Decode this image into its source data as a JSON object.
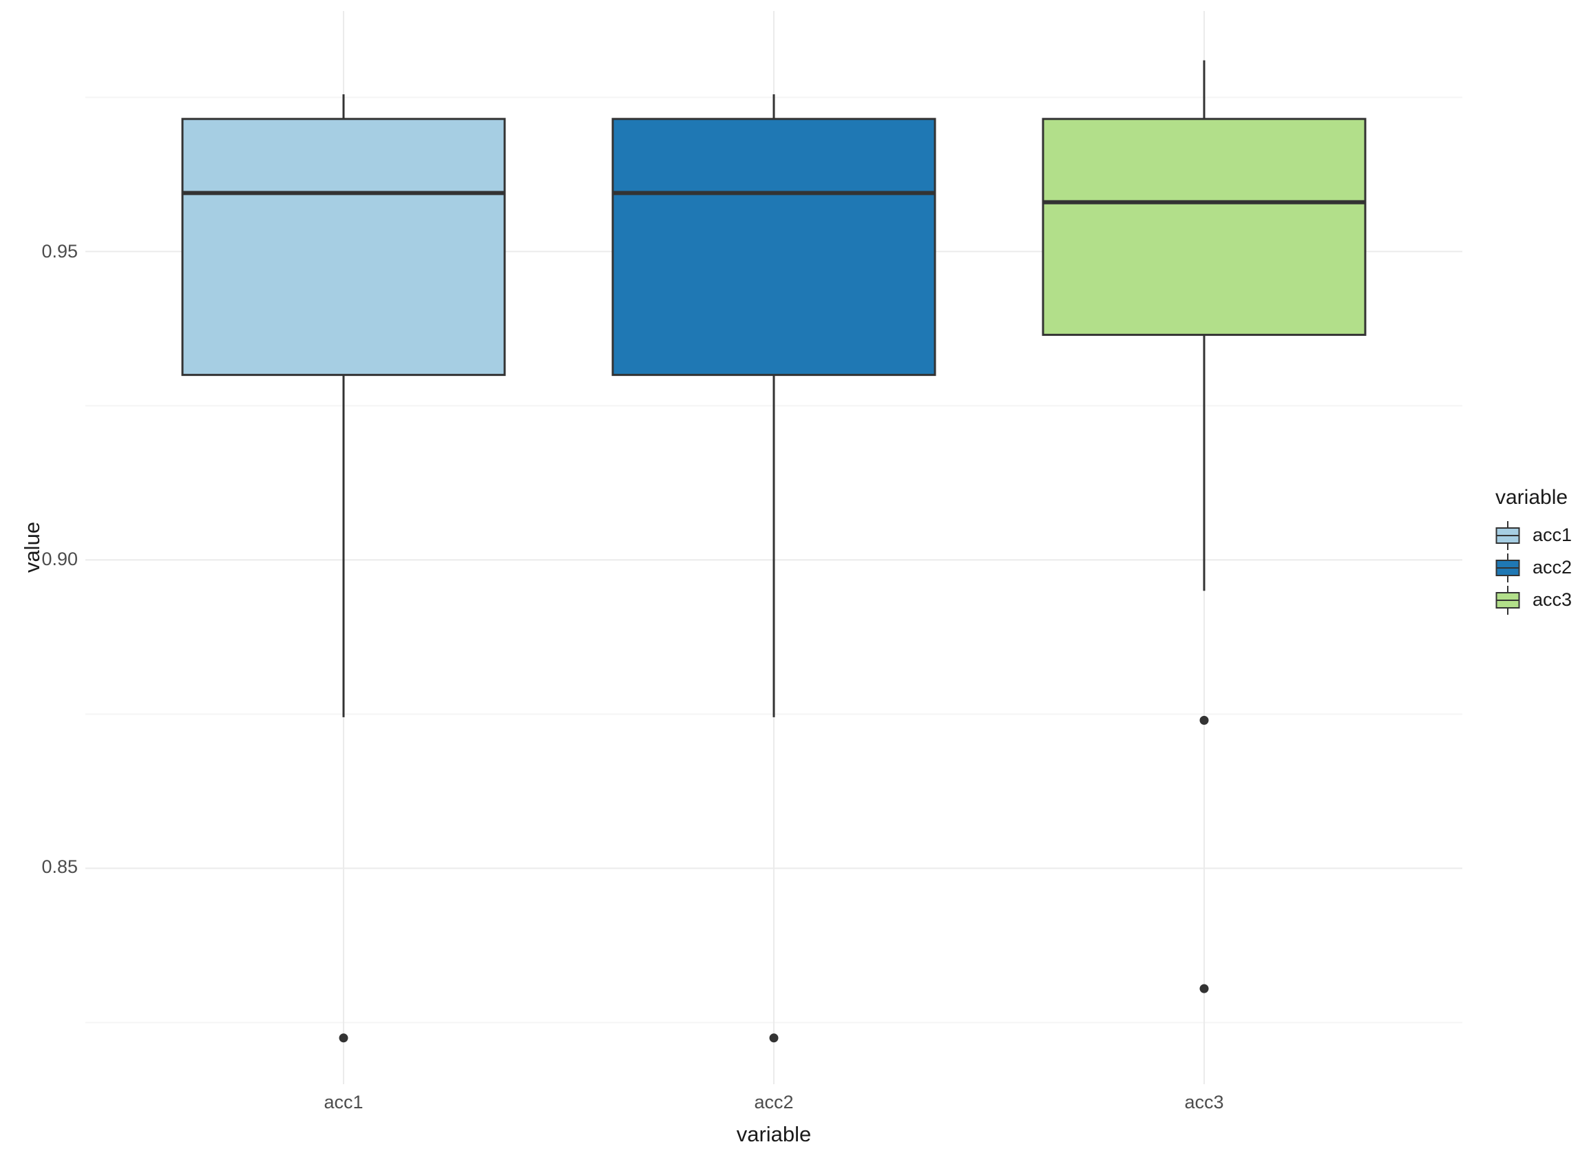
{
  "chart_data": {
    "type": "boxplot",
    "title": "",
    "xlabel": "variable",
    "ylabel": "value",
    "categories": [
      "acc1",
      "acc2",
      "acc3"
    ],
    "ytick_labels": [
      "0.85",
      "0.90",
      "0.95"
    ],
    "yticks": [
      0.85,
      0.9,
      0.95
    ],
    "minor_yticks": [
      0.825,
      0.875,
      0.925,
      0.975
    ],
    "ylim": [
      0.815,
      0.989
    ],
    "grid": true,
    "legend": {
      "title": "variable",
      "position": "right",
      "entries": [
        {
          "label": "acc1"
        },
        {
          "label": "acc2"
        },
        {
          "label": "acc3"
        }
      ]
    },
    "series": [
      {
        "name": "acc1",
        "fill": "#A6CEE3",
        "whisker_low": 0.8745,
        "q1": 0.93,
        "median": 0.9595,
        "q3": 0.9715,
        "whisker_high": 0.9755,
        "outliers": [
          0.8225
        ]
      },
      {
        "name": "acc2",
        "fill": "#1F78B4",
        "whisker_low": 0.8745,
        "q1": 0.93,
        "median": 0.9595,
        "q3": 0.9715,
        "whisker_high": 0.9755,
        "outliers": [
          0.8225
        ]
      },
      {
        "name": "acc3",
        "fill": "#B2DF8A",
        "whisker_low": 0.895,
        "q1": 0.9365,
        "median": 0.958,
        "q3": 0.9715,
        "whisker_high": 0.981,
        "outliers": [
          0.874,
          0.8305
        ]
      }
    ],
    "colors": {
      "stroke": "#333333",
      "grid_major": "#EBEBEB",
      "grid_minor": "#F5F5F5",
      "tick_label": "#4D4D4D",
      "axis_title": "#1A1A1A",
      "background": "#FFFFFF"
    }
  }
}
